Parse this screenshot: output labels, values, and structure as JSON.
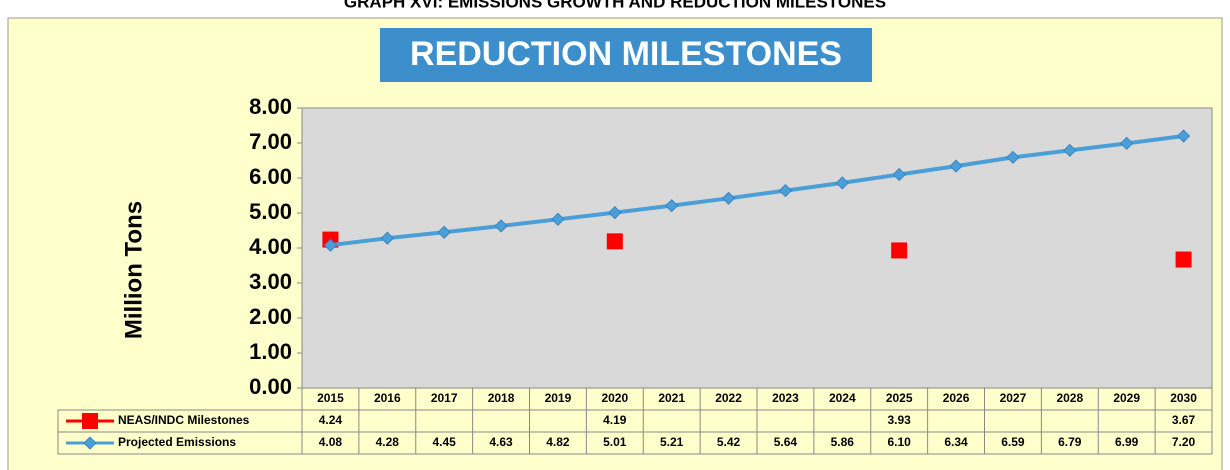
{
  "chart_data": {
    "type": "line",
    "title": "GRAPH XVI: EMISSIONS GROWTH AND REDUCTION MILESTONES",
    "subtitle": "REDUCTION MILESTONES",
    "ylabel": "Million Tons",
    "categories": [
      "2015",
      "2016",
      "2017",
      "2018",
      "2019",
      "2020",
      "2021",
      "2022",
      "2023",
      "2024",
      "2025",
      "2026",
      "2027",
      "2028",
      "2029",
      "2030"
    ],
    "ylim": [
      0,
      8
    ],
    "yticks": [
      {
        "value": 0,
        "label": "0.00"
      },
      {
        "value": 1,
        "label": "1.00"
      },
      {
        "value": 2,
        "label": "2.00"
      },
      {
        "value": 3,
        "label": "3.00"
      },
      {
        "value": 4,
        "label": "4.00"
      },
      {
        "value": 5,
        "label": "5.00"
      },
      {
        "value": 6,
        "label": "6.00"
      },
      {
        "value": 7,
        "label": "7.00"
      },
      {
        "value": 8,
        "label": "8.00"
      }
    ],
    "grid": false,
    "series": [
      {
        "name": "NEAS/INDC Milestones",
        "color": "#ff0000",
        "marker": "square",
        "values": [
          4.24,
          null,
          null,
          null,
          null,
          4.19,
          null,
          null,
          null,
          null,
          3.93,
          null,
          null,
          null,
          null,
          3.67
        ],
        "value_labels": [
          "4.24",
          null,
          null,
          null,
          null,
          "4.19",
          null,
          null,
          null,
          null,
          "3.93",
          null,
          null,
          null,
          null,
          "3.67"
        ]
      },
      {
        "name": "Projected Emissions",
        "color": "#4a9fd8",
        "marker": "diamond",
        "values": [
          4.08,
          4.28,
          4.45,
          4.63,
          4.82,
          5.01,
          5.21,
          5.42,
          5.64,
          5.86,
          6.1,
          6.34,
          6.59,
          6.79,
          6.99,
          7.2
        ],
        "value_labels": [
          "4.08",
          "4.28",
          "4.45",
          "4.63",
          "4.82",
          "5.01",
          "5.21",
          "5.42",
          "5.64",
          "5.86",
          "6.10",
          "6.34",
          "6.59",
          "6.79",
          "6.99",
          "7.20"
        ]
      }
    ]
  }
}
